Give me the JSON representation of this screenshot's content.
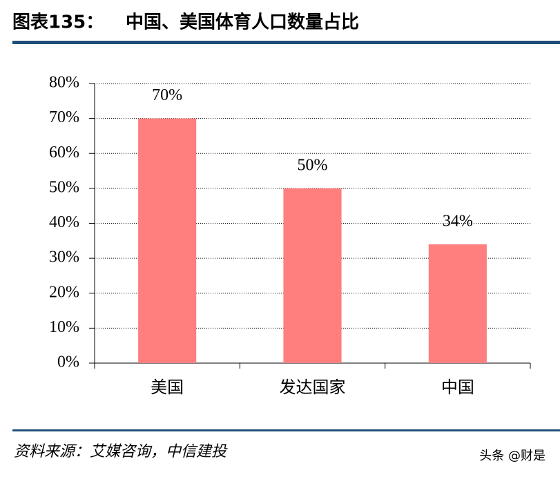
{
  "figure_label": "图表135：",
  "chart_data": {
    "type": "bar",
    "title": "中国、美国体育人口数量占比",
    "categories": [
      "美国",
      "发达国家",
      "中国"
    ],
    "values": [
      70,
      50,
      34
    ],
    "value_labels": [
      "70%",
      "50%",
      "34%"
    ],
    "color": "#ff7f7f",
    "ylim": [
      0,
      80
    ],
    "yticks": [
      {
        "value": 0,
        "label": "0%"
      },
      {
        "value": 10,
        "label": "10%"
      },
      {
        "value": 20,
        "label": "20%"
      },
      {
        "value": 30,
        "label": "30%"
      },
      {
        "value": 40,
        "label": "40%"
      },
      {
        "value": 50,
        "label": "50%"
      },
      {
        "value": 60,
        "label": "60%"
      },
      {
        "value": 70,
        "label": "70%"
      },
      {
        "value": 80,
        "label": "80%"
      }
    ],
    "grid": true
  },
  "source": "资料来源：艾媒咨询，中信建投",
  "watermark": "头条 @财是"
}
